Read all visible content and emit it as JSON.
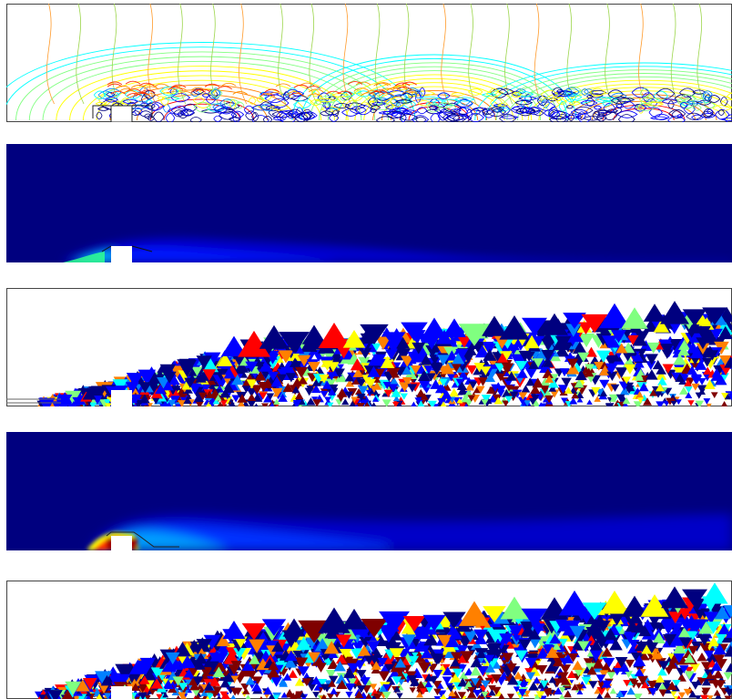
{
  "figure": {
    "panels": [
      {
        "id": "p1",
        "kind": "contour-lines"
      },
      {
        "id": "p2",
        "kind": "filled-field-weak"
      },
      {
        "id": "p3",
        "kind": "adaptive-mesh-error"
      },
      {
        "id": "p4",
        "kind": "filled-field-strong"
      },
      {
        "id": "p5",
        "kind": "adaptive-mesh-error"
      }
    ],
    "colors": {
      "field_background": "#00007f",
      "jet_colormap": [
        "#00007f",
        "#0000ff",
        "#0080ff",
        "#00ffff",
        "#80ff80",
        "#ffff00",
        "#ff8000",
        "#ff0000",
        "#7f0000"
      ]
    }
  }
}
